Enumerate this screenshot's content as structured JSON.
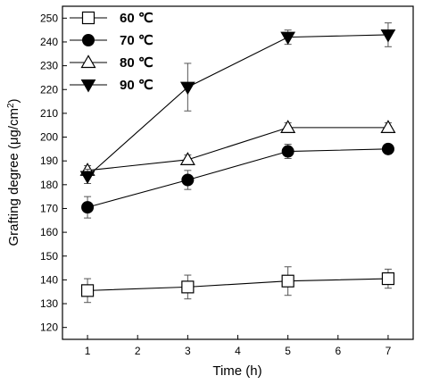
{
  "chart_data": {
    "type": "line",
    "xlabel": "Time (h)",
    "ylabel_main": "Grafting degree (μg/cm",
    "ylabel_sup": "2",
    "ylabel_close": ")",
    "xlim": [
      0.5,
      7.5
    ],
    "ylim": [
      115,
      255
    ],
    "xticks": [
      1,
      2,
      3,
      4,
      5,
      6,
      7
    ],
    "yticks": [
      120,
      130,
      140,
      150,
      160,
      170,
      180,
      190,
      200,
      210,
      220,
      230,
      240,
      250
    ],
    "x": [
      1,
      3,
      5,
      7
    ],
    "legend_position": "top-left",
    "series": [
      {
        "name": "60 ℃",
        "marker": "square-open",
        "values": [
          135.5,
          137,
          139.5,
          140.5
        ],
        "errors": [
          5,
          5,
          6,
          4
        ]
      },
      {
        "name": "70 ℃",
        "marker": "circle-filled",
        "values": [
          170.5,
          182,
          194,
          195
        ],
        "errors": [
          4.5,
          4,
          3,
          2
        ]
      },
      {
        "name": "80 ℃",
        "marker": "triangle-up-open",
        "values": [
          186,
          190.5,
          204,
          204
        ],
        "errors": [
          2,
          2,
          2,
          2
        ]
      },
      {
        "name": "90 ℃",
        "marker": "triangle-down-filled",
        "values": [
          183.5,
          221,
          242,
          243
        ],
        "errors": [
          3,
          10,
          3,
          5
        ]
      }
    ]
  }
}
